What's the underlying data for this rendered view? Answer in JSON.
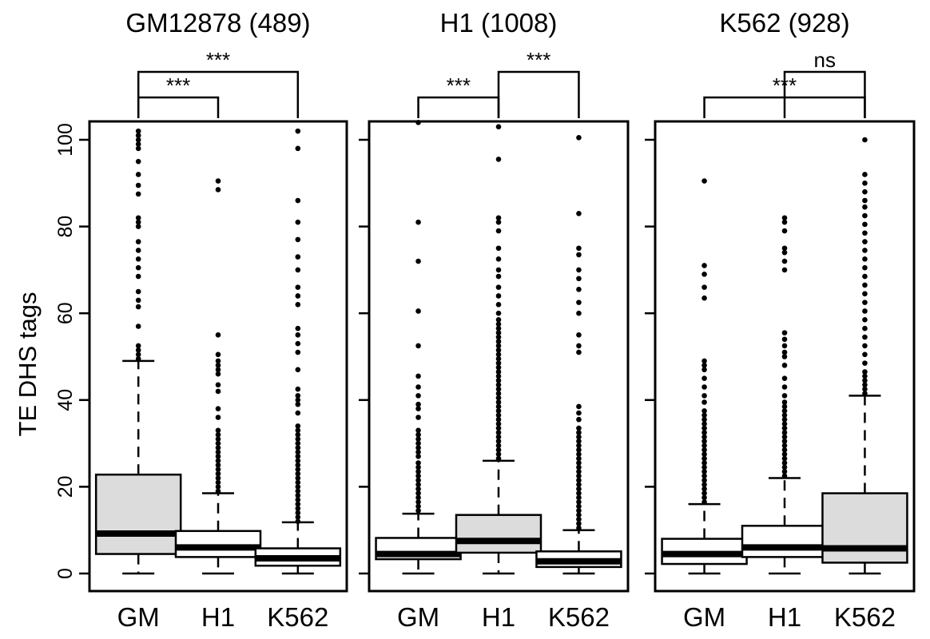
{
  "figure": {
    "ylabel": "TE DHS tags",
    "ylim": [
      0,
      105
    ],
    "yticks": [
      "0",
      "20",
      "40",
      "60",
      "80",
      "100"
    ]
  },
  "chart_data": [
    {
      "type": "boxplot",
      "title": "GM12878 (489)",
      "categories": [
        "GM",
        "H1",
        "K562"
      ],
      "ylabel": "TE DHS tags",
      "ylim": [
        0,
        105
      ],
      "highlighted": "GM",
      "boxes": [
        {
          "min": 0,
          "q1": 4.5,
          "median": 9.2,
          "q3": 22.8,
          "whisker_high": 49,
          "outliers": [
            49.5,
            50.5,
            51.5,
            52.5,
            57,
            61.5,
            63,
            65,
            68.5,
            70.5,
            72.5,
            74.5,
            76.5,
            80,
            81,
            82,
            87.5,
            89.5,
            92,
            95,
            98,
            99,
            100,
            101,
            102
          ]
        },
        {
          "min": 0,
          "q1": 3.8,
          "median": 6,
          "q3": 9.8,
          "whisker_high": 18.5,
          "outliers": [
            19,
            20,
            21,
            22,
            23,
            24,
            25,
            26,
            27,
            28,
            29,
            30,
            31,
            32,
            33,
            36,
            38,
            42,
            43.5,
            46,
            47,
            48,
            49,
            50.5,
            55,
            88.5,
            90.5
          ]
        },
        {
          "min": 0,
          "q1": 1.8,
          "median": 3.5,
          "q3": 5.8,
          "whisker_high": 11.8,
          "outliers": [
            12,
            13,
            14,
            15,
            16,
            17,
            18,
            19,
            20,
            21,
            22,
            23,
            24,
            25,
            26,
            27,
            28,
            29,
            30,
            31,
            32,
            33,
            34,
            37,
            39,
            40,
            41,
            42.5,
            47,
            51,
            53,
            55,
            56.5,
            62,
            64,
            66,
            70,
            73,
            77,
            81,
            86,
            98,
            102
          ]
        }
      ],
      "comparisons": [
        {
          "pair": [
            "GM",
            "H1"
          ],
          "label": "***"
        },
        {
          "pair": [
            "GM",
            "K562"
          ],
          "label": "***"
        }
      ]
    },
    {
      "type": "boxplot",
      "title": "H1 (1008)",
      "categories": [
        "GM",
        "H1",
        "K562"
      ],
      "ylabel": "TE DHS tags",
      "ylim": [
        0,
        105
      ],
      "highlighted": "H1",
      "boxes": [
        {
          "min": 0,
          "q1": 3.3,
          "median": 4.5,
          "q3": 8.2,
          "whisker_high": 13.8,
          "outliers": [
            14.5,
            15.5,
            16.5,
            17.5,
            18.5,
            19.5,
            20.5,
            21.5,
            22.5,
            23.5,
            24.5,
            25.5,
            27,
            28,
            29,
            30,
            31,
            32,
            33,
            36,
            38,
            39,
            41,
            43,
            45.5,
            52.5,
            60.5,
            72,
            81,
            104
          ]
        },
        {
          "min": 0,
          "q1": 4.8,
          "median": 7.5,
          "q3": 13.5,
          "whisker_high": 26,
          "outliers": [
            26.5,
            27.5,
            28.5,
            29.5,
            30.5,
            31.5,
            32.5,
            33.5,
            34.5,
            35.5,
            36.5,
            37.5,
            38.5,
            39.5,
            40.5,
            41.5,
            42.5,
            43.5,
            44.5,
            45.5,
            46.5,
            47.5,
            48.5,
            49.5,
            50.5,
            51.5,
            52.5,
            53.5,
            54.5,
            55.5,
            56.5,
            57.5,
            58.5,
            60,
            62,
            64,
            66,
            68.5,
            70,
            72.5,
            75,
            79,
            81,
            82,
            95.5,
            103
          ]
        },
        {
          "min": 0,
          "q1": 1.5,
          "median": 2.8,
          "q3": 5.1,
          "whisker_high": 10,
          "outliers": [
            10.5,
            11.5,
            12.5,
            13.5,
            14.5,
            15.5,
            16.5,
            17.5,
            18.5,
            19.5,
            20.5,
            21.5,
            22.5,
            23.5,
            24.5,
            25.5,
            26.5,
            27.5,
            28.5,
            29.5,
            30.5,
            31.5,
            32.5,
            33.5,
            35.5,
            37,
            38.5,
            51,
            52.5,
            55,
            60,
            62.5,
            65.5,
            68,
            70,
            73.5,
            75,
            83,
            100.5
          ]
        }
      ],
      "comparisons": [
        {
          "pair": [
            "GM",
            "H1"
          ],
          "label": "***"
        },
        {
          "pair": [
            "H1",
            "K562"
          ],
          "label": "***"
        }
      ]
    },
    {
      "type": "boxplot",
      "title": "K562 (928)",
      "categories": [
        "GM",
        "H1",
        "K562"
      ],
      "ylabel": "TE DHS tags",
      "ylim": [
        0,
        105
      ],
      "highlighted": "K562",
      "boxes": [
        {
          "min": 0,
          "q1": 2.2,
          "median": 4.5,
          "q3": 8,
          "whisker_high": 16,
          "outliers": [
            16.5,
            17.5,
            18.5,
            19.5,
            20.5,
            21.5,
            22.5,
            23.5,
            24.5,
            25.5,
            26.5,
            27.5,
            28.5,
            29.5,
            30.5,
            31.5,
            32.5,
            33.5,
            34.5,
            35.5,
            36.5,
            37.5,
            39.5,
            41,
            43,
            45,
            47,
            48,
            49,
            63.5,
            66,
            69,
            71,
            90.5
          ]
        },
        {
          "min": 0,
          "q1": 3.8,
          "median": 6,
          "q3": 11,
          "whisker_high": 22,
          "outliers": [
            22.5,
            23.5,
            24.5,
            25.5,
            26.5,
            27.5,
            28.5,
            29.5,
            30.5,
            31.5,
            32.5,
            33.5,
            34.5,
            35.5,
            36.5,
            37.5,
            38.5,
            39.5,
            41,
            43,
            45,
            48,
            50,
            51,
            52.5,
            54,
            55.5,
            70,
            72,
            74,
            75,
            79,
            81,
            82
          ]
        },
        {
          "min": 0,
          "q1": 2.5,
          "median": 5.8,
          "q3": 18.5,
          "whisker_high": 41,
          "outliers": [
            41.5,
            42.5,
            43.5,
            44.5,
            45.5,
            46.5,
            48.5,
            50.5,
            52.5,
            54.5,
            56.5,
            58.5,
            60.5,
            62.5,
            64.5,
            66.5,
            68.5,
            70.5,
            72.5,
            74.5,
            76.5,
            78.5,
            80.5,
            82.5,
            84.5,
            86,
            88,
            90,
            92,
            100
          ]
        }
      ],
      "comparisons": [
        {
          "pair": [
            "GM",
            "K562"
          ],
          "label": "***"
        },
        {
          "pair": [
            "H1",
            "K562"
          ],
          "label": "ns"
        }
      ]
    }
  ]
}
